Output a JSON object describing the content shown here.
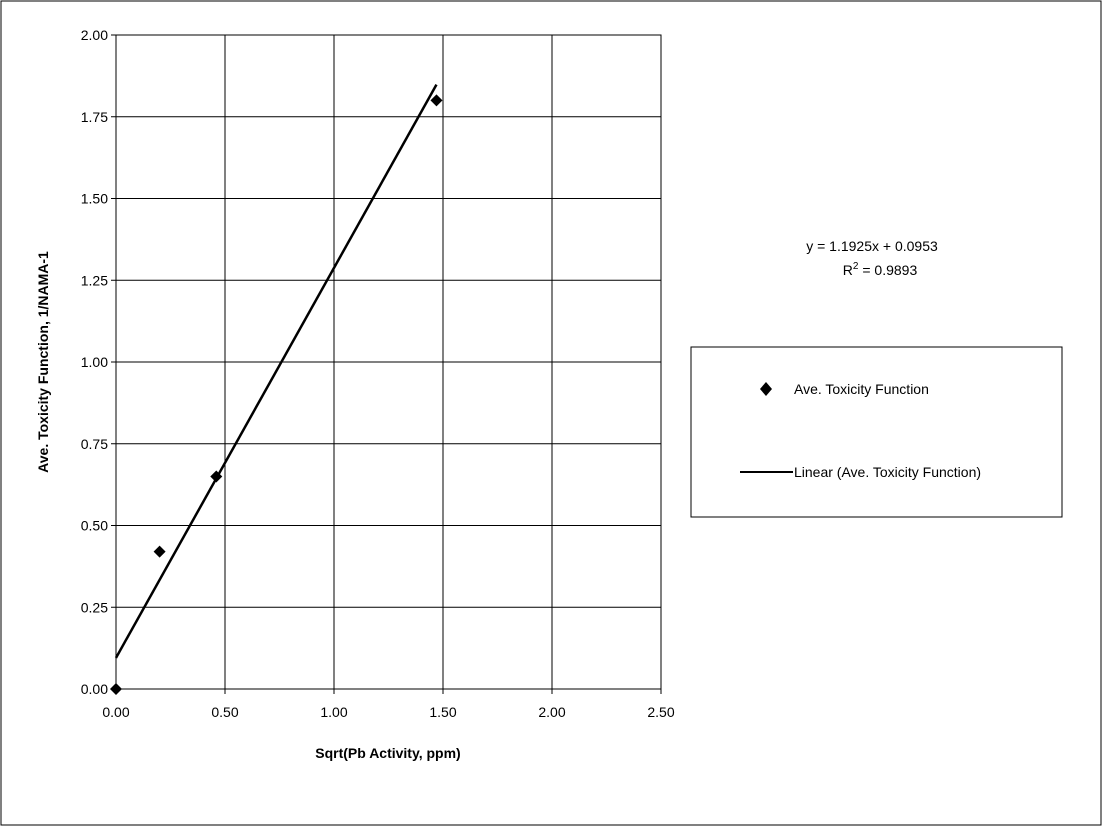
{
  "chart_data": {
    "type": "scatter",
    "xlabel": "Sqrt(Pb Activity, ppm)",
    "ylabel": "Ave. Toxicity Function, 1/NAMA-1",
    "xlim": [
      0,
      2.5
    ],
    "ylim": [
      0,
      2.0
    ],
    "x_ticks": [
      "0.00",
      "0.50",
      "1.00",
      "1.50",
      "2.00",
      "2.50"
    ],
    "y_ticks": [
      "0.00",
      "0.25",
      "0.50",
      "0.75",
      "1.00",
      "1.25",
      "1.50",
      "1.75",
      "2.00"
    ],
    "grid": true,
    "legend_position": "right",
    "series": [
      {
        "name": "Ave. Toxicity Function",
        "marker": "diamond",
        "x": [
          0.0,
          0.2,
          0.46,
          1.47
        ],
        "y": [
          0.0,
          0.42,
          0.65,
          1.8
        ]
      }
    ],
    "trendline": {
      "name": "Linear (Ave. Toxicity Function)",
      "slope": 1.1925,
      "intercept": 0.0953,
      "x_range": [
        0.0,
        1.47
      ]
    },
    "annotations": {
      "equation": "y = 1.1925x + 0.0953",
      "r_squared_prefix": "R",
      "r_squared_sup": "2",
      "r_squared_value": " = 0.9893"
    }
  }
}
